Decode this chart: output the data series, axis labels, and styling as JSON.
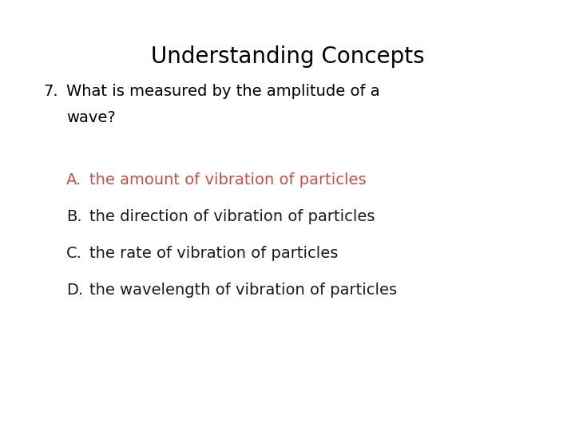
{
  "title": "Understanding Concepts",
  "title_fontsize": 20,
  "title_color": "#000000",
  "question_number": "7.",
  "question_text_line1": "What is measured by the amplitude of a",
  "question_text_line2": "wave?",
  "question_fontsize": 14,
  "question_color": "#000000",
  "answers": [
    {
      "label": "A.",
      "text": "the amount of vibration of particles",
      "color": "#c0504d"
    },
    {
      "label": "B.",
      "text": "the direction of vibration of particles",
      "color": "#1a1a1a"
    },
    {
      "label": "C.",
      "text": "the rate of vibration of particles",
      "color": "#1a1a1a"
    },
    {
      "label": "D.",
      "text": "the wavelength of vibration of particles",
      "color": "#1a1a1a"
    }
  ],
  "answer_fontsize": 14,
  "background_color": "#ffffff",
  "fig_width": 7.2,
  "fig_height": 5.4,
  "dpi": 100
}
